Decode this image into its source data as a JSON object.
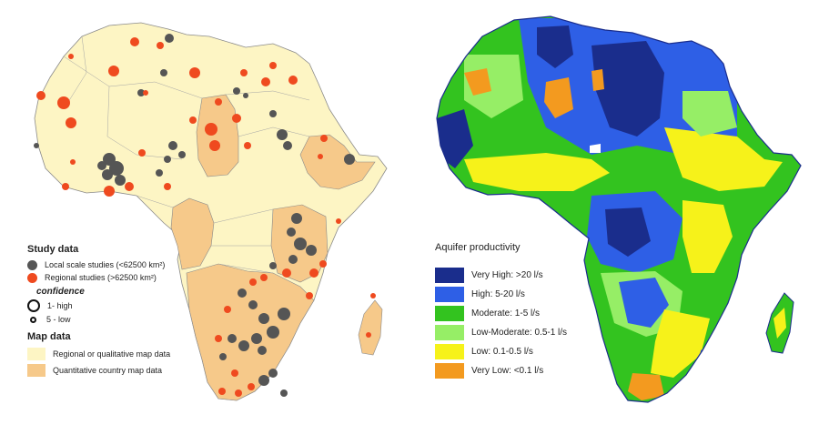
{
  "study_legend": {
    "title": "Study data",
    "local_label": "Local scale studies (<62500 km²)",
    "regional_label": "Regional studies (>62500 km²)",
    "confidence_title": "confidence",
    "high_label": "1- high",
    "low_label": "5 - low",
    "map_data_title": "Map data",
    "qualitative_label": "Regional or qualitative map data",
    "quantitative_label": "Quantitative country map data"
  },
  "aquifer_legend": {
    "title": "Aquifer productivity",
    "classes": [
      {
        "label": "Very High: >20 l/s",
        "color": "#1a2d8c"
      },
      {
        "label": "High: 5-20 l/s",
        "color": "#2e5fe6"
      },
      {
        "label": "Moderate: 1-5 l/s",
        "color": "#33c31f"
      },
      {
        "label": "Low-Moderate: 0.5-1 l/s",
        "color": "#96ee66"
      },
      {
        "label": "Low: 0.1-0.5 l/s",
        "color": "#f6f21a"
      },
      {
        "label": "Very Low: <0.1 l/s",
        "color": "#f39a1f"
      }
    ]
  },
  "colors": {
    "local_dot": "#555555",
    "regional_dot": "#ef4a1f",
    "qualitative_fill": "#fdf5c4",
    "quantitative_fill": "#f6c98a",
    "border": "#9a9a9a"
  }
}
